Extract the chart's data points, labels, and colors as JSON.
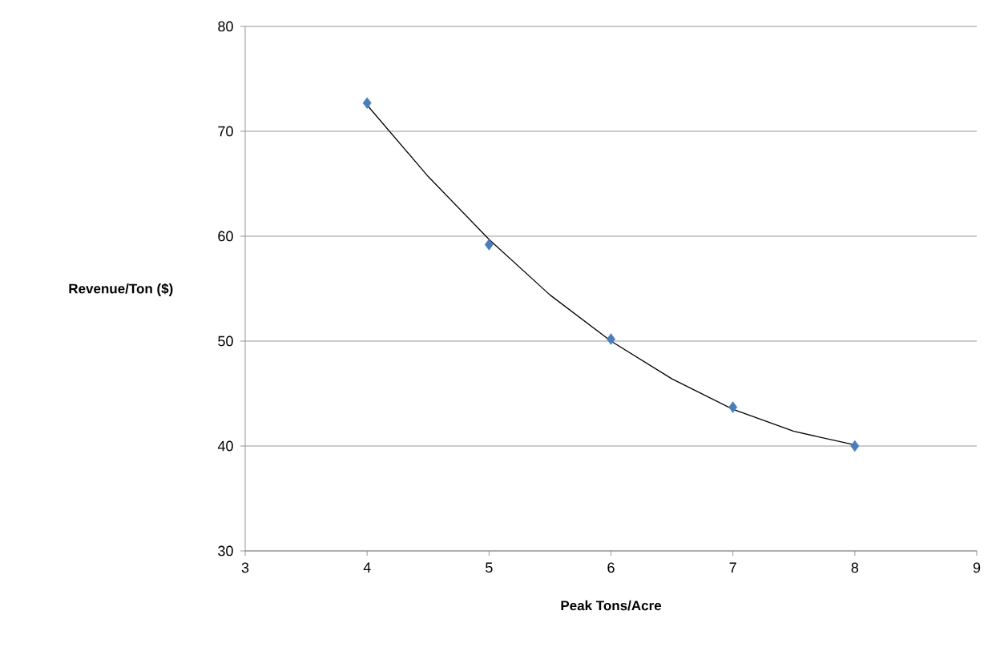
{
  "chart_data": {
    "type": "scatter",
    "xlabel": "Peak Tons/Acre",
    "ylabel": "Revenue/Ton ($)",
    "xlim": [
      3,
      9
    ],
    "xticks": [
      3,
      4,
      5,
      6,
      7,
      8,
      9
    ],
    "ylim": [
      30,
      80
    ],
    "yticks": [
      30,
      40,
      50,
      60,
      70,
      80
    ],
    "grid": "y",
    "series": [
      {
        "color": "#4a7ebb",
        "marker": "diamond",
        "x": [
          4,
          5,
          6,
          7,
          8
        ],
        "values": [
          72.7,
          59.2,
          50.2,
          43.7,
          40.0
        ]
      },
      {
        "type": "line",
        "color": "#000000",
        "marker": "none",
        "line_style": "solid",
        "x": [
          4,
          4.5,
          5,
          5.5,
          6,
          6.5,
          7,
          7.5,
          8
        ],
        "values": [
          72.5,
          65.7,
          59.7,
          54.4,
          50.0,
          46.4,
          43.5,
          41.4,
          40.1
        ]
      }
    ]
  }
}
